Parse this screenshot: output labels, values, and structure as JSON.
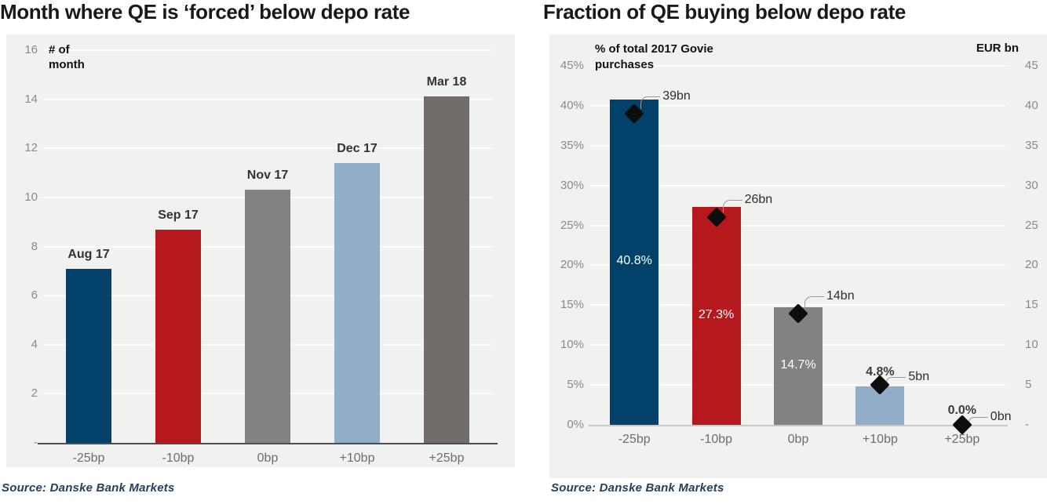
{
  "charts": [
    {
      "title": "Month where QE is ‘forced’ below depo rate",
      "source": "Source: Danske Bank Markets",
      "chart_data": {
        "type": "bar",
        "categories": [
          "-25bp",
          "-10bp",
          "0bp",
          "+10bp",
          "+25bp"
        ],
        "values": [
          7.1,
          8.7,
          10.3,
          11.4,
          14.1
        ],
        "point_labels": [
          "Aug 17",
          "Sep 17",
          "Nov 17",
          "Dec 17",
          "Mar 18"
        ],
        "bar_colors": [
          "#02426a",
          "#b5191e",
          "#828282",
          "#91adc7",
          "#6f6c6a"
        ],
        "ylabel": "# of\nmonth",
        "xlabel": "",
        "ylim": [
          0,
          16
        ],
        "yticks": [
          "16",
          "14",
          "12",
          "10",
          "8",
          "6",
          "4",
          "2",
          "-"
        ],
        "ytick_values": [
          16,
          14,
          12,
          10,
          8,
          6,
          4,
          2,
          0
        ],
        "grid": true,
        "legend": "none"
      }
    },
    {
      "title": "Fraction of QE buying below depo rate",
      "source": "Source: Danske Bank Markets",
      "chart_data": {
        "type": "bar",
        "categories": [
          "-25bp",
          "-10bp",
          "0bp",
          "+10bp",
          "+25bp"
        ],
        "series": [
          {
            "name": "% of total 2017 Govie purchases",
            "type": "bar",
            "axis": "left",
            "values": [
              40.8,
              27.3,
              14.7,
              4.8,
              0.0
            ],
            "labels": [
              "40.8%",
              "27.3%",
              "14.7%",
              "4.8%",
              "0.0%"
            ],
            "colors": [
              "#02426a",
              "#b5191e",
              "#828282",
              "#91adc7",
              "#6f6c6a"
            ]
          },
          {
            "name": "EUR bn",
            "type": "point",
            "axis": "right",
            "marker": "diamond",
            "marker_color": "#0d0d0d",
            "values": [
              39,
              26,
              14,
              5,
              0
            ],
            "labels": [
              "39bn",
              "26bn",
              "14bn",
              "5bn",
              "0bn"
            ]
          }
        ],
        "left_axis": {
          "title": "% of total 2017 Govie\npurchases",
          "ticks": [
            "45%",
            "40%",
            "35%",
            "30%",
            "25%",
            "20%",
            "15%",
            "10%",
            "5%",
            "0%"
          ],
          "tick_values": [
            45,
            40,
            35,
            30,
            25,
            20,
            15,
            10,
            5,
            0
          ],
          "range": [
            0,
            45
          ]
        },
        "right_axis": {
          "title": "EUR bn",
          "ticks": [
            "45",
            "40",
            "35",
            "30",
            "25",
            "20",
            "15",
            "10",
            "5",
            "-"
          ],
          "tick_values": [
            45,
            40,
            35,
            30,
            25,
            20,
            15,
            10,
            5,
            0
          ],
          "range": [
            0,
            45
          ]
        },
        "grid": true,
        "legend": "none"
      }
    }
  ],
  "colors": {
    "panel_bg": "#f1f1f0",
    "gridline": "#fbfbfa",
    "axis_dark": "#4d4d4d",
    "axis_light": "#c8c8c8",
    "tick": "#8a8a8a",
    "category": "#6d6d6d",
    "title": "#191919",
    "source": "#26415e",
    "bar_label_dark": "#3c3c3c",
    "bar_label_light": "#ffffff",
    "callout_line": "#9b9b9b",
    "callout_text": "#2e2e2e",
    "navy": "#02426a",
    "red": "#b5191e",
    "gray": "#828282",
    "light_blue": "#91adc7",
    "dark_gray": "#6f6c6a",
    "marker_black": "#0d0d0d"
  }
}
